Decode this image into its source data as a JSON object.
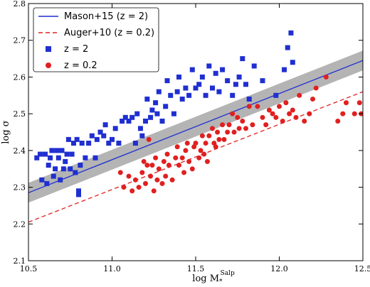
{
  "chart_data": {
    "type": "scatter",
    "xlim": [
      10.5,
      12.5
    ],
    "ylim": [
      2.1,
      2.8
    ],
    "x_ticks": [
      "10.5",
      "11.0",
      "11.5",
      "12.0",
      "12.5"
    ],
    "y_ticks": [
      "2.1",
      "2.2",
      "2.3",
      "2.4",
      "2.5",
      "2.6",
      "2.7",
      "2.8"
    ],
    "x_tick_values": [
      10.5,
      11.0,
      11.5,
      12.0,
      12.5
    ],
    "y_tick_values": [
      2.1,
      2.2,
      2.3,
      2.4,
      2.5,
      2.6,
      2.7,
      2.8
    ],
    "xlabel": "log M*^Salp",
    "xlabel_main": "log M",
    "xlabel_sub": "*",
    "xlabel_sup": "Salp",
    "ylabel": "log σ",
    "grid": false,
    "legend_position": "top-left",
    "legend": [
      {
        "label": "Mason+15 (z = 2)",
        "style": "solid-line",
        "color": "#1f2fd0"
      },
      {
        "label": "Auger+10 (z = 0.2)",
        "style": "dashed-line",
        "color": "#e02020"
      },
      {
        "label": "z = 2",
        "style": "square",
        "color": "#1f2fd0"
      },
      {
        "label": "z = 0.2",
        "style": "circle",
        "color": "#e02020"
      }
    ],
    "lines": [
      {
        "name": "Mason+15 (z = 2)",
        "color": "#1f2fd0",
        "dash": false,
        "x": [
          10.5,
          12.5
        ],
        "y": [
          2.285,
          2.645
        ],
        "band_half_width": 0.027,
        "band_color": "#b4b4b4"
      },
      {
        "name": "Auger+10 (z = 0.2)",
        "color": "#e02020",
        "dash": true,
        "x": [
          10.5,
          12.5
        ],
        "y": [
          2.205,
          2.56
        ]
      }
    ],
    "series": [
      {
        "name": "z = 2",
        "marker": "square",
        "color": "#1f2fd0",
        "points": [
          [
            10.55,
            2.38
          ],
          [
            10.57,
            2.39
          ],
          [
            10.58,
            2.32
          ],
          [
            10.6,
            2.39
          ],
          [
            10.61,
            2.31
          ],
          [
            10.62,
            2.36
          ],
          [
            10.63,
            2.38
          ],
          [
            10.64,
            2.4
          ],
          [
            10.65,
            2.33
          ],
          [
            10.66,
            2.35
          ],
          [
            10.67,
            2.4
          ],
          [
            10.68,
            2.38
          ],
          [
            10.69,
            2.32
          ],
          [
            10.7,
            2.4
          ],
          [
            10.71,
            2.35
          ],
          [
            10.72,
            2.37
          ],
          [
            10.73,
            2.39
          ],
          [
            10.74,
            2.43
          ],
          [
            10.75,
            2.35
          ],
          [
            10.76,
            2.39
          ],
          [
            10.77,
            2.42
          ],
          [
            10.78,
            2.34
          ],
          [
            10.79,
            2.43
          ],
          [
            10.8,
            2.29
          ],
          [
            10.8,
            2.28
          ],
          [
            10.81,
            2.36
          ],
          [
            10.82,
            2.42
          ],
          [
            10.84,
            2.38
          ],
          [
            10.86,
            2.42
          ],
          [
            10.88,
            2.44
          ],
          [
            10.9,
            2.38
          ],
          [
            10.91,
            2.43
          ],
          [
            10.93,
            2.45
          ],
          [
            10.95,
            2.44
          ],
          [
            10.96,
            2.47
          ],
          [
            10.98,
            2.42
          ],
          [
            11.0,
            2.43
          ],
          [
            11.02,
            2.46
          ],
          [
            11.04,
            2.42
          ],
          [
            11.06,
            2.48
          ],
          [
            11.08,
            2.49
          ],
          [
            11.1,
            2.48
          ],
          [
            11.12,
            2.49
          ],
          [
            11.14,
            2.42
          ],
          [
            11.15,
            2.5
          ],
          [
            11.17,
            2.46
          ],
          [
            11.18,
            2.44
          ],
          [
            11.2,
            2.48
          ],
          [
            11.21,
            2.54
          ],
          [
            11.23,
            2.49
          ],
          [
            11.24,
            2.51
          ],
          [
            11.26,
            2.53
          ],
          [
            11.27,
            2.5
          ],
          [
            11.28,
            2.56
          ],
          [
            11.3,
            2.48
          ],
          [
            11.32,
            2.52
          ],
          [
            11.33,
            2.59
          ],
          [
            11.35,
            2.55
          ],
          [
            11.37,
            2.5
          ],
          [
            11.39,
            2.56
          ],
          [
            11.4,
            2.6
          ],
          [
            11.42,
            2.54
          ],
          [
            11.44,
            2.57
          ],
          [
            11.46,
            2.55
          ],
          [
            11.48,
            2.62
          ],
          [
            11.5,
            2.57
          ],
          [
            11.52,
            2.58
          ],
          [
            11.54,
            2.6
          ],
          [
            11.56,
            2.55
          ],
          [
            11.58,
            2.63
          ],
          [
            11.6,
            2.57
          ],
          [
            11.62,
            2.61
          ],
          [
            11.64,
            2.56
          ],
          [
            11.66,
            2.62
          ],
          [
            11.69,
            2.59
          ],
          [
            11.72,
            2.55
          ],
          [
            11.74,
            2.58
          ],
          [
            11.76,
            2.6
          ],
          [
            11.78,
            2.65
          ],
          [
            11.8,
            2.58
          ],
          [
            11.82,
            2.54
          ],
          [
            11.85,
            2.63
          ],
          [
            11.9,
            2.59
          ],
          [
            11.98,
            2.55
          ],
          [
            12.03,
            2.62
          ],
          [
            12.05,
            2.68
          ],
          [
            12.07,
            2.72
          ],
          [
            12.08,
            2.64
          ]
        ]
      },
      {
        "name": "z = 0.2",
        "marker": "circle",
        "color": "#e02020",
        "points": [
          [
            11.05,
            2.34
          ],
          [
            11.07,
            2.3
          ],
          [
            11.1,
            2.33
          ],
          [
            11.12,
            2.29
          ],
          [
            11.14,
            2.32
          ],
          [
            11.16,
            2.3
          ],
          [
            11.18,
            2.34
          ],
          [
            11.19,
            2.37
          ],
          [
            11.2,
            2.31
          ],
          [
            11.21,
            2.36
          ],
          [
            11.22,
            2.43
          ],
          [
            11.23,
            2.33
          ],
          [
            11.24,
            2.36
          ],
          [
            11.25,
            2.29
          ],
          [
            11.26,
            2.38
          ],
          [
            11.27,
            2.32
          ],
          [
            11.28,
            2.35
          ],
          [
            11.3,
            2.31
          ],
          [
            11.31,
            2.37
          ],
          [
            11.32,
            2.33
          ],
          [
            11.33,
            2.39
          ],
          [
            11.34,
            2.36
          ],
          [
            11.36,
            2.32
          ],
          [
            11.38,
            2.38
          ],
          [
            11.39,
            2.41
          ],
          [
            11.4,
            2.36
          ],
          [
            11.42,
            2.38
          ],
          [
            11.43,
            2.34
          ],
          [
            11.44,
            2.4
          ],
          [
            11.45,
            2.42
          ],
          [
            11.46,
            2.37
          ],
          [
            11.48,
            2.35
          ],
          [
            11.49,
            2.41
          ],
          [
            11.5,
            2.42
          ],
          [
            11.52,
            2.38
          ],
          [
            11.53,
            2.4
          ],
          [
            11.54,
            2.44
          ],
          [
            11.55,
            2.39
          ],
          [
            11.56,
            2.42
          ],
          [
            11.57,
            2.37
          ],
          [
            11.58,
            2.44
          ],
          [
            11.6,
            2.46
          ],
          [
            11.61,
            2.42
          ],
          [
            11.62,
            2.41
          ],
          [
            11.63,
            2.45
          ],
          [
            11.64,
            2.43
          ],
          [
            11.66,
            2.47
          ],
          [
            11.67,
            2.43
          ],
          [
            11.69,
            2.45
          ],
          [
            11.7,
            2.47
          ],
          [
            11.72,
            2.5
          ],
          [
            11.73,
            2.45
          ],
          [
            11.75,
            2.49
          ],
          [
            11.76,
            2.46
          ],
          [
            11.78,
            2.48
          ],
          [
            11.8,
            2.46
          ],
          [
            11.82,
            2.52
          ],
          [
            11.84,
            2.47
          ],
          [
            11.87,
            2.52
          ],
          [
            11.9,
            2.49
          ],
          [
            11.92,
            2.47
          ],
          [
            11.94,
            2.51
          ],
          [
            11.96,
            2.5
          ],
          [
            11.98,
            2.49
          ],
          [
            12.0,
            2.52
          ],
          [
            12.02,
            2.48
          ],
          [
            12.04,
            2.53
          ],
          [
            12.06,
            2.5
          ],
          [
            12.08,
            2.51
          ],
          [
            12.1,
            2.49
          ],
          [
            12.12,
            2.55
          ],
          [
            12.15,
            2.48
          ],
          [
            12.18,
            2.5
          ],
          [
            12.2,
            2.54
          ],
          [
            12.22,
            2.57
          ],
          [
            12.28,
            2.6
          ],
          [
            12.35,
            2.48
          ],
          [
            12.38,
            2.5
          ],
          [
            12.4,
            2.53
          ],
          [
            12.45,
            2.5
          ],
          [
            12.48,
            2.53
          ],
          [
            12.49,
            2.5
          ]
        ]
      }
    ]
  }
}
